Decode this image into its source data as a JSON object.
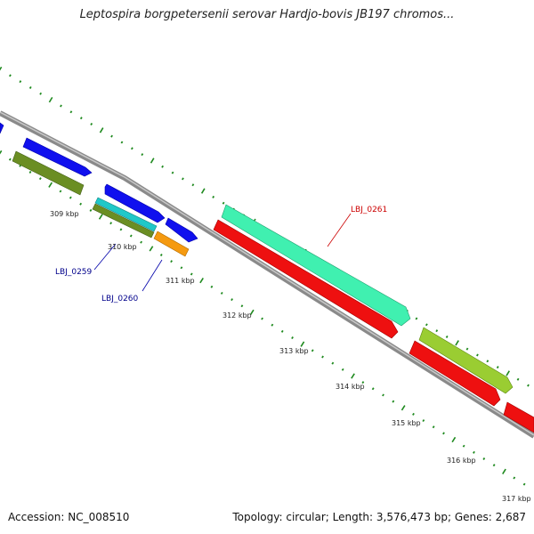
{
  "title": "Leptospira borgpetersenii serovar Hardjo-bovis JB197 chromos...",
  "footer": {
    "accession": "Accession: NC_008510",
    "summary": "Topology: circular; Length: 3,576,473 bp; Genes: 2,687"
  },
  "tick_labels": [
    "309 kbp",
    "310 kbp",
    "311 kbp",
    "312 kbp",
    "313 kbp",
    "314 kbp",
    "315 kbp",
    "316 kbp",
    "317 kbp"
  ],
  "gene_labels": [
    {
      "text": "LBJ_0259",
      "color": "#00008b"
    },
    {
      "text": "LBJ_0260",
      "color": "#00008b"
    },
    {
      "text": "LBJ_0261",
      "color": "#cc0000"
    }
  ],
  "colors": {
    "backbone": "#8a8a8a",
    "tick": "#1f8a1f",
    "cds_blue": "#1010ee",
    "cds_red": "#ee1010",
    "olive": "#6b8e23",
    "cyan": "#20c8c8",
    "orange": "#f59a10",
    "aquamarine": "#40f0b0",
    "yellow_green": "#9acd32"
  }
}
